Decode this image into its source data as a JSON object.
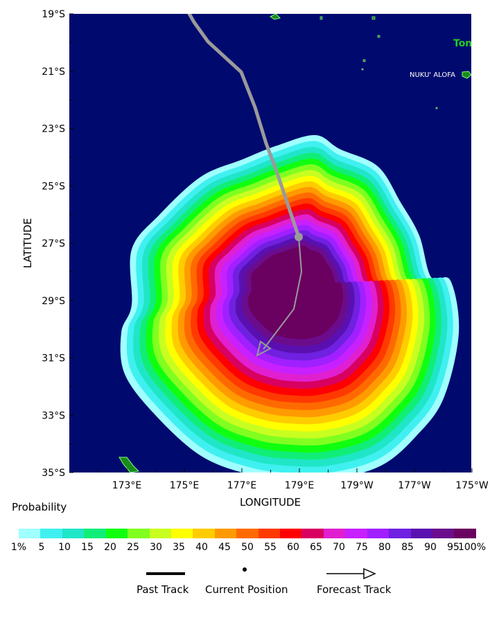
{
  "map": {
    "xlabel": "LONGITUDE",
    "ylabel": "LATITUDE",
    "lat_ticks": [
      "19°S",
      "21°S",
      "23°S",
      "25°S",
      "27°S",
      "29°S",
      "31°S",
      "33°S",
      "35°S"
    ],
    "lon_ticks": [
      "173°E",
      "175°E",
      "177°E",
      "179°E",
      "179°W",
      "177°W",
      "175°W"
    ],
    "place_label": "NUKU' ALOFA",
    "country_label": "Ton",
    "ocean_color": "#000a6e",
    "track_color": "#9a9a9a"
  },
  "legend": {
    "title": "Probability",
    "levels": [
      "1%",
      "5",
      "10",
      "15",
      "20",
      "25",
      "30",
      "35",
      "40",
      "45",
      "50",
      "55",
      "60",
      "65",
      "70",
      "75",
      "80",
      "85",
      "90",
      "95",
      "100%"
    ],
    "colors": [
      "#a0ffff",
      "#40f0f0",
      "#20e6c8",
      "#10ee78",
      "#10ff10",
      "#80ff20",
      "#c8ff20",
      "#ffff00",
      "#ffcc00",
      "#ff9a00",
      "#ff6a00",
      "#ff3a00",
      "#ff0000",
      "#d80060",
      "#e020d0",
      "#c820ff",
      "#a020ff",
      "#7020e0",
      "#5a10b0",
      "#6a0c8c",
      "#6a0060"
    ],
    "past_track_label": "Past Track",
    "current_position_label": "Current Position",
    "forecast_track_label": "Forecast Track"
  }
}
